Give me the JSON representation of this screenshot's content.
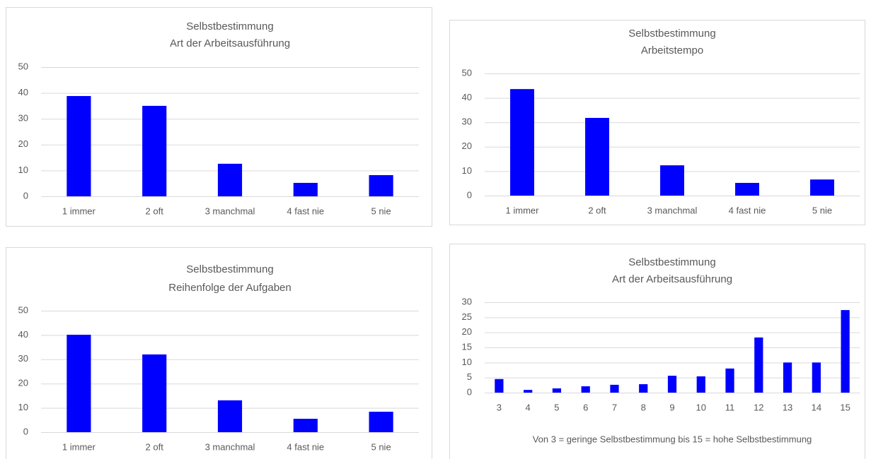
{
  "chart_data": [
    {
      "type": "bar",
      "title": "Selbstbestimmung",
      "subtitle": "Art der Arbeitsausführung",
      "categories": [
        "1  immer",
        "2 oft",
        "3 manchmal",
        "4 fast nie",
        "5 nie"
      ],
      "values": [
        38.8,
        35,
        12.6,
        5.2,
        8.2
      ],
      "color": "#0000ff",
      "ylim": [
        0,
        50
      ],
      "yticks": [
        0,
        10,
        20,
        30,
        40,
        50
      ],
      "grid": true
    },
    {
      "type": "bar",
      "title": "Selbstbestimmung",
      "subtitle": "Arbeitstempo",
      "categories": [
        "1  immer",
        "2 oft",
        "3 manchmal",
        "4 fast nie",
        "5 nie"
      ],
      "values": [
        43.6,
        31.8,
        12.4,
        5.2,
        6.6
      ],
      "color": "#0000ff",
      "ylim": [
        0,
        50
      ],
      "yticks": [
        0,
        10,
        20,
        30,
        40,
        50
      ],
      "grid": true
    },
    {
      "type": "bar",
      "title": "Selbstbestimmung",
      "subtitle": "Reihenfolge der Aufgaben",
      "categories": [
        "1  immer",
        "2 oft",
        "3 manchmal",
        "4 fast nie",
        "5 nie"
      ],
      "values": [
        40.1,
        32,
        13.1,
        5.5,
        8.4
      ],
      "color": "#0000ff",
      "ylim": [
        0,
        50
      ],
      "yticks": [
        0,
        10,
        20,
        30,
        40,
        50
      ],
      "grid": true
    },
    {
      "type": "bar",
      "title": "Selbstbestimmung",
      "subtitle": "Art der Arbeitsausführung",
      "categories": [
        "3",
        "4",
        "5",
        "6",
        "7",
        "8",
        "9",
        "10",
        "11",
        "12",
        "13",
        "14",
        "15"
      ],
      "values": [
        4.5,
        0.9,
        1.4,
        2.1,
        2.6,
        2.8,
        5.6,
        5.4,
        8,
        18.3,
        10,
        10,
        27.4
      ],
      "color": "#0000ff",
      "ylim": [
        0,
        30
      ],
      "yticks": [
        0,
        5,
        10,
        15,
        20,
        25,
        30
      ],
      "grid": true,
      "xlabel": "Von 3 = geringe Selbstbestimmung bis 15 = hohe Selbstbestimmung"
    }
  ]
}
